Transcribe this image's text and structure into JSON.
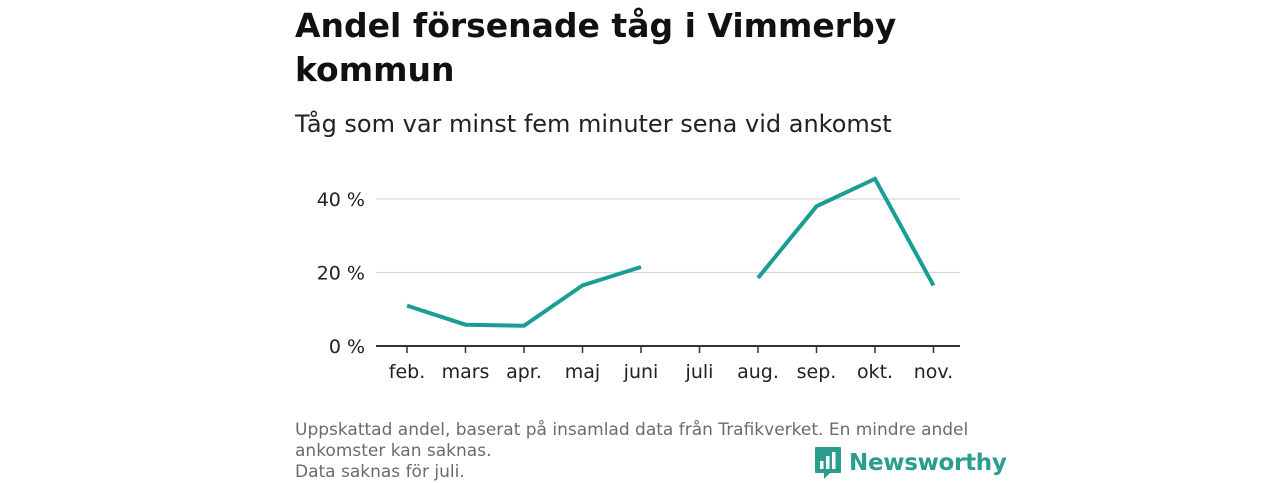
{
  "title": "Andel försenade tåg i Vimmerby kommun",
  "subtitle": "Tåg som var minst fem minuter sena vid ankomst",
  "footnote": {
    "line1": "Uppskattad andel, baserat på insamlad data från Trafikverket. En mindre andel ankomster kan saknas.",
    "line2": "Data saknas för juli."
  },
  "brand": {
    "name": "Newsworthy",
    "color": "#2a9d8f",
    "icon": "bar-chart-speech-bubble-icon"
  },
  "chart_data": {
    "type": "line",
    "title": "Andel försenade tåg i Vimmerby kommun",
    "subtitle": "Tåg som var minst fem minuter sena vid ankomst",
    "xlabel": "",
    "ylabel": "",
    "categories": [
      "feb.",
      "mars",
      "apr.",
      "maj",
      "juni",
      "juli",
      "aug.",
      "sep.",
      "okt.",
      "nov."
    ],
    "series": [
      {
        "name": "Andel försenade tåg",
        "color": "#1a9e93",
        "values": [
          11,
          5.8,
          5.5,
          16.5,
          21.5,
          null,
          18.5,
          38,
          45.5,
          16.5
        ]
      }
    ],
    "yticks": [
      {
        "value": 0,
        "label": "0 %"
      },
      {
        "value": 20,
        "label": "20 %"
      },
      {
        "value": 40,
        "label": "40 %"
      }
    ],
    "ylim": [
      0,
      46
    ],
    "grid": true,
    "legend": "none"
  }
}
